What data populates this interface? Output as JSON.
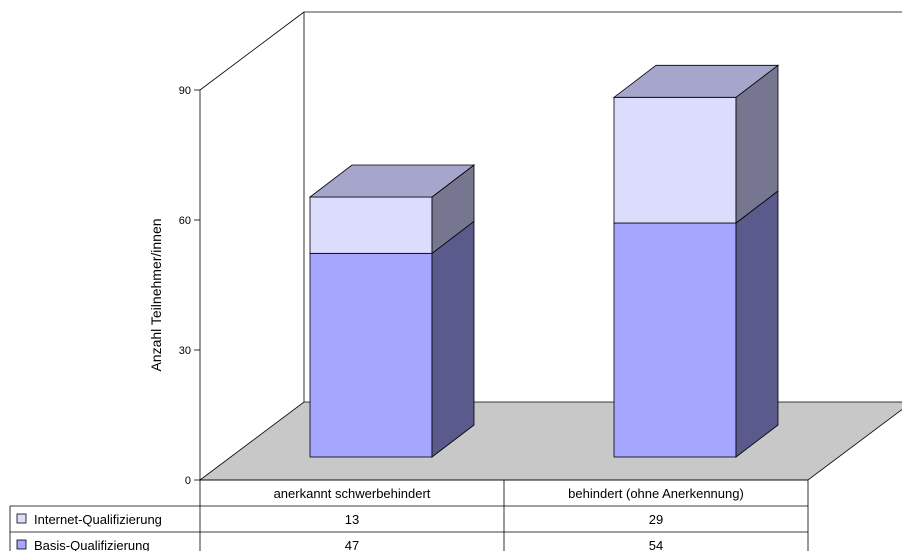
{
  "chart_data": {
    "type": "bar",
    "stacked": true,
    "three_d": true,
    "categories": [
      "anerkannt schwerbehindert",
      "behindert (ohne Anerkennung)"
    ],
    "series": [
      {
        "name": "Basis-Qualifizierung",
        "values": [
          47,
          54
        ],
        "color": "#a6a6ff"
      },
      {
        "name": "Internet-Qualifizierung",
        "values": [
          13,
          29
        ],
        "color": "#dcdcfc"
      }
    ],
    "ylabel": "Anzahl Teilnehmer/innen",
    "ylim": [
      0,
      90
    ],
    "yticks": [
      0,
      30,
      60,
      90
    ],
    "grid": false,
    "legend": "data-table-bottom",
    "data_table": true
  }
}
